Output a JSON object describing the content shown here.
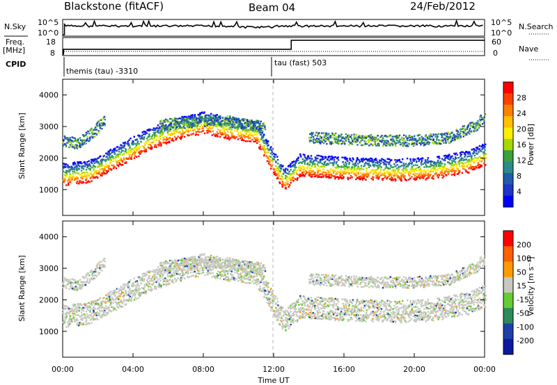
{
  "header": {
    "station": "Blackstone (fitACF)",
    "beam": "Beam 04",
    "date": "24/Feb/2012"
  },
  "status_panel": {
    "nsky_label": "N.Sky",
    "nsky_ticks": [
      "10^5",
      "10^0"
    ],
    "nsearch_label": "N.Search",
    "nsearch_ticks": [
      "10^5",
      "10^0"
    ],
    "freq_label": "Freq.",
    "freq_unit": "[MHz]",
    "freq_ticks": [
      "18",
      "8"
    ],
    "nave_label": "Nave",
    "nave_ticks": [
      "60",
      "0"
    ],
    "cpid_label": "CPID",
    "modes": [
      {
        "name": "themis (tau)  -3310",
        "start_hour": 0.0
      },
      {
        "name": "tau (fast) 503",
        "start_hour": 12.0
      }
    ],
    "freq_step": [
      {
        "hour": 0.0,
        "level": 0.35
      },
      {
        "hour": 13.0,
        "level": 0.85
      }
    ]
  },
  "power_panel": {
    "ylabel": "Slant Range [km]",
    "yticks": [
      "4000",
      "3000",
      "2000",
      "1000"
    ],
    "colorbar_label": "Power [dB]",
    "colorbar_ticks": [
      "28",
      "24",
      "20",
      "16",
      "12",
      "8",
      "4"
    ],
    "colorbar_colors": [
      "#ff0000",
      "#ff4000",
      "#ff8000",
      "#ffc000",
      "#ffee00",
      "#a8d800",
      "#3aa040",
      "#2c8a8a",
      "#205ca8",
      "#2034c8",
      "#0000ff"
    ]
  },
  "velocity_panel": {
    "ylabel": "Slant Range [km]",
    "yticks": [
      "4000",
      "3000",
      "2000",
      "1000"
    ],
    "colorbar_label": "Velocity [m s⁻¹]",
    "colorbar_ticks": [
      "200",
      "100",
      "50",
      "15",
      "-15",
      "-50",
      "-100",
      "-200"
    ],
    "colorbar_colors": [
      "#ff0000",
      "#ff6000",
      "#ff9a00",
      "#c8c8c0",
      "#66cc33",
      "#2e8b57",
      "#1f3fa8",
      "#0b1aa0"
    ]
  },
  "xaxis": {
    "label": "Time UT",
    "ticks": [
      "00:00",
      "04:00",
      "08:00",
      "12:00",
      "16:00",
      "20:00",
      "00:00"
    ]
  },
  "chart_data": {
    "type": "heatmap",
    "x_range_hours": [
      0,
      24
    ],
    "y_range_km": [
      180,
      4500
    ],
    "mode_change_hour": 12.0,
    "power_scatter_bands": [
      {
        "name": "main",
        "points": [
          [
            0.0,
            1150
          ],
          [
            1.5,
            1250
          ],
          [
            3.0,
            1700
          ],
          [
            5.0,
            2300
          ],
          [
            6.5,
            2600
          ],
          [
            8.0,
            2800
          ],
          [
            9.5,
            2600
          ],
          [
            11.0,
            2500
          ],
          [
            12.0,
            1500
          ],
          [
            12.6,
            1000
          ],
          [
            13.5,
            1450
          ],
          [
            16.0,
            1350
          ],
          [
            19.0,
            1300
          ],
          [
            21.0,
            1350
          ],
          [
            23.0,
            1550
          ],
          [
            24.0,
            1800
          ]
        ]
      },
      {
        "name": "upper",
        "points": [
          [
            0.0,
            2400
          ],
          [
            0.8,
            2300
          ],
          [
            1.8,
            2700
          ],
          [
            2.4,
            3100
          ]
        ]
      },
      {
        "name": "mid",
        "points": [
          [
            5.5,
            2900
          ],
          [
            7.5,
            3000
          ],
          [
            9.0,
            3050
          ],
          [
            10.5,
            2900
          ],
          [
            11.5,
            2850
          ]
        ]
      },
      {
        "name": "high",
        "points": [
          [
            14.0,
            2500
          ],
          [
            16.0,
            2450
          ],
          [
            18.0,
            2400
          ],
          [
            20.0,
            2400
          ],
          [
            22.0,
            2500
          ],
          [
            23.5,
            2900
          ],
          [
            24.0,
            3150
          ]
        ]
      }
    ]
  }
}
